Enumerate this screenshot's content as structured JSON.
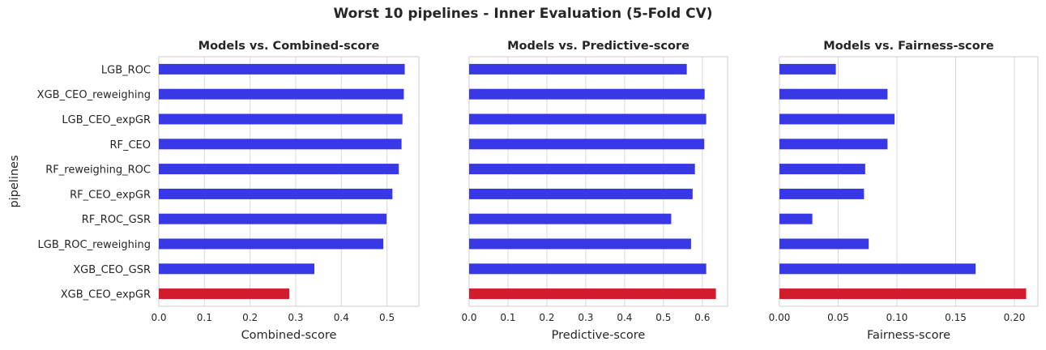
{
  "suptitle": "Worst 10 pipelines - Inner Evaluation (5-Fold CV)",
  "ylabel": "pipelines",
  "colors": {
    "normal": "#3838e6",
    "highlight": "#d01c2b",
    "grid": "#d9d9d9",
    "spine": "#cccccc"
  },
  "chart_data": [
    {
      "type": "bar",
      "orientation": "horizontal",
      "title": "Models vs. Combined-score",
      "xlabel": "Combined-score",
      "ylabel": "pipelines",
      "xlim": [
        0,
        0.57
      ],
      "xticks": [
        "0.0",
        "0.1",
        "0.2",
        "0.3",
        "0.4",
        "0.5"
      ],
      "grid": true,
      "categories": [
        "LGB_ROC",
        "XGB_CEO_reweighing",
        "LGB_CEO_expGR",
        "RF_CEO",
        "RF_reweighing_ROC",
        "RF_CEO_expGR",
        "RF_ROC_GSR",
        "LGB_ROC_reweighing",
        "XGB_CEO_GSR",
        "XGB_CEO_expGR"
      ],
      "values": [
        0.539,
        0.537,
        0.534,
        0.532,
        0.526,
        0.512,
        0.499,
        0.492,
        0.341,
        0.286
      ],
      "highlight_index": 9
    },
    {
      "type": "bar",
      "orientation": "horizontal",
      "title": "Models vs. Predictive-score",
      "xlabel": "Predictive-score",
      "xlim": [
        0,
        0.665
      ],
      "xticks": [
        "0.0",
        "0.1",
        "0.2",
        "0.3",
        "0.4",
        "0.5",
        "0.6"
      ],
      "grid": true,
      "categories": [
        "LGB_ROC",
        "XGB_CEO_reweighing",
        "LGB_CEO_expGR",
        "RF_CEO",
        "RF_reweighing_ROC",
        "RF_CEO_expGR",
        "RF_ROC_GSR",
        "LGB_ROC_reweighing",
        "XGB_CEO_GSR",
        "XGB_CEO_expGR"
      ],
      "values": [
        0.56,
        0.606,
        0.61,
        0.605,
        0.581,
        0.575,
        0.52,
        0.571,
        0.61,
        0.635
      ],
      "highlight_index": 9
    },
    {
      "type": "bar",
      "orientation": "horizontal",
      "title": "Models vs. Fairness-score",
      "xlabel": "Fairness-score",
      "xlim": [
        0,
        0.22
      ],
      "xticks": [
        "0.00",
        "0.05",
        "0.10",
        "0.15",
        "0.20"
      ],
      "grid": true,
      "categories": [
        "LGB_ROC",
        "XGB_CEO_reweighing",
        "LGB_CEO_expGR",
        "RF_CEO",
        "RF_reweighing_ROC",
        "RF_CEO_expGR",
        "RF_ROC_GSR",
        "LGB_ROC_reweighing",
        "XGB_CEO_GSR",
        "XGB_CEO_expGR"
      ],
      "values": [
        0.048,
        0.092,
        0.098,
        0.092,
        0.073,
        0.072,
        0.028,
        0.076,
        0.167,
        0.21
      ],
      "highlight_index": 9
    }
  ]
}
